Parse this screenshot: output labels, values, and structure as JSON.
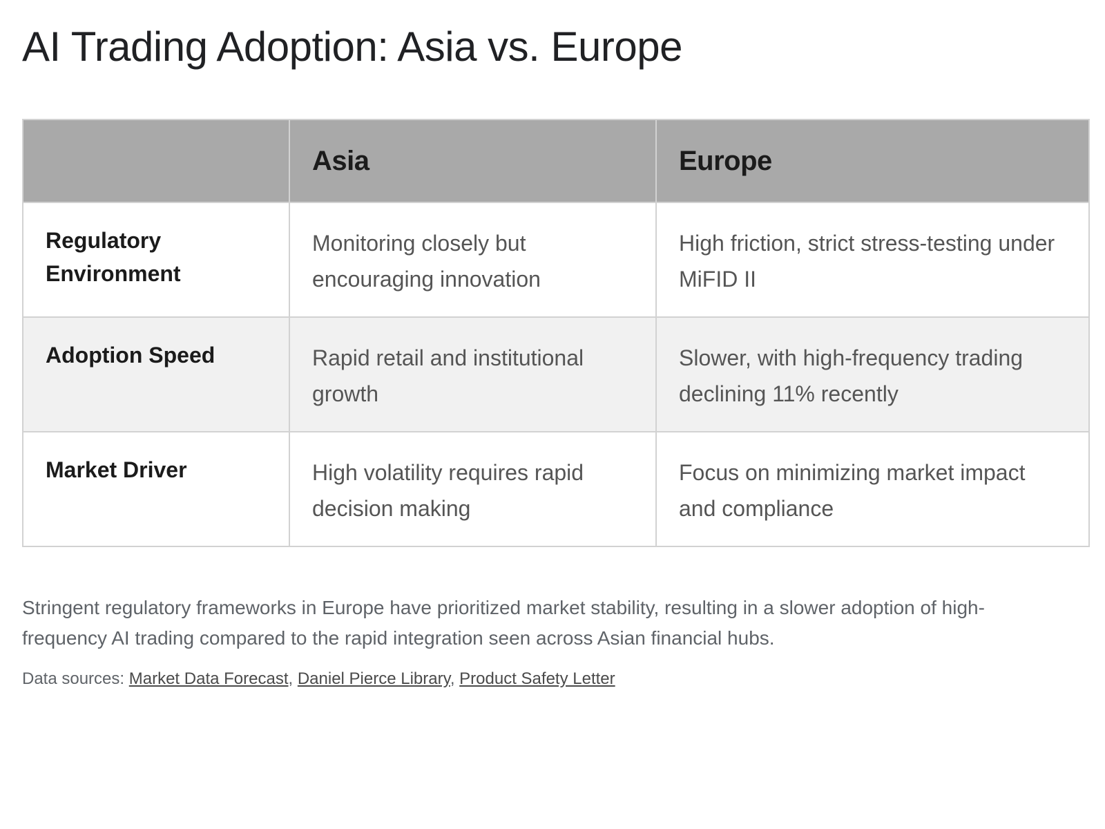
{
  "title": "AI Trading Adoption: Asia vs. Europe",
  "table": {
    "headers": [
      "",
      "Asia",
      "Europe"
    ],
    "rows": [
      {
        "label": "Regulatory Environment",
        "asia": "Monitoring closely but encouraging innovation",
        "europe": "High friction, strict stress-testing under MiFID II"
      },
      {
        "label": "Adoption Speed",
        "asia": "Rapid retail and institutional growth",
        "europe": "Slower, with high-frequency trading declining 11% recently"
      },
      {
        "label": "Market Driver",
        "asia": "High volatility requires rapid decision making",
        "europe": "Focus on minimizing market impact and compliance"
      }
    ]
  },
  "summary": "Stringent regulatory frameworks in Europe have prioritized market stability, resulting in a slower adoption of high-frequency AI trading compared to the rapid integration seen across Asian financial hubs.",
  "sources": {
    "prefix": "Data sources:",
    "separator": ",",
    "links": [
      "Market Data Forecast",
      "Daniel Pierce Library",
      "Product Safety Letter"
    ]
  },
  "colors": {
    "header_bg": "#a9a9a9",
    "alt_row_bg": "#f1f1f1",
    "border": "#d2d2d2"
  }
}
